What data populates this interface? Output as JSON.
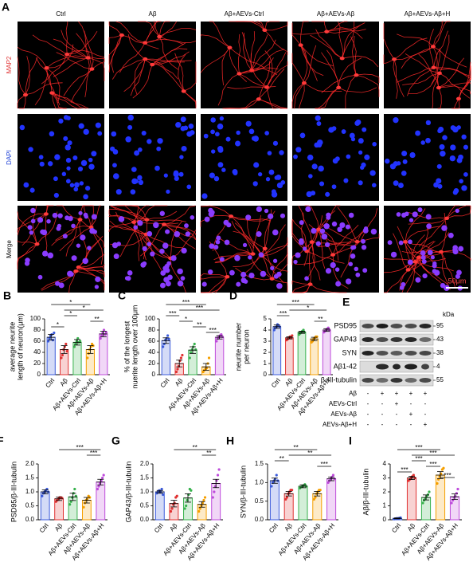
{
  "figure": {
    "panel_a": {
      "label": "A",
      "columns": [
        "Ctrl",
        "Aβ",
        "Aβ+AEVs-Ctrl",
        "Aβ+AEVs-Aβ",
        "Aβ+AEVs-Aβ+H"
      ],
      "rows": [
        "MAP2",
        "DAPI",
        "Merge"
      ],
      "scale_bar": "50μm"
    },
    "panel_e": {
      "label": "E",
      "unit": "kDa",
      "proteins": [
        "PSD95",
        "GAP43",
        "SYN",
        "Aβ1-42",
        "β-III-tubulin"
      ],
      "sizes": [
        95,
        43,
        38,
        4,
        55
      ],
      "treatments": [
        {
          "name": "Aβ",
          "signs": [
            "-",
            "+",
            "+",
            "+",
            "+"
          ]
        },
        {
          "name": "AEVs-Ctrl",
          "signs": [
            "-",
            "-",
            "+",
            "-",
            "-"
          ]
        },
        {
          "name": "AEVs-Aβ",
          "signs": [
            "-",
            "-",
            "-",
            "+",
            "-"
          ]
        },
        {
          "name": "AEVs-Aβ+H",
          "signs": [
            "-",
            "-",
            "-",
            "-",
            "+"
          ]
        }
      ]
    }
  },
  "chart_data": [
    {
      "label": "B",
      "type": "bar",
      "ylabel": [
        "average neurite",
        "length of neuron(μm)"
      ],
      "categories": [
        "Ctrl",
        "Aβ",
        "Aβ+AEVs-Ctrl",
        "Aβ+AEVs-Aβ",
        "Aβ+AEVs-Aβ+H"
      ],
      "colors": [
        "#3b5bdb",
        "#e03131",
        "#37b24d",
        "#f59f00",
        "#be4bdb"
      ],
      "values": [
        67,
        45,
        58,
        45,
        73
      ],
      "errors": [
        5,
        7,
        5,
        7,
        5
      ],
      "points": [
        [
          60,
          65,
          70,
          72,
          62,
          75
        ],
        [
          30,
          35,
          45,
          50,
          55,
          42
        ],
        [
          50,
          55,
          60,
          65,
          58,
          60
        ],
        [
          30,
          38,
          45,
          50,
          55,
          52
        ],
        [
          65,
          70,
          75,
          80,
          72,
          76
        ]
      ],
      "ylim": [
        0,
        100
      ],
      "yticks": [
        0,
        20,
        40,
        60,
        80,
        100
      ],
      "annotations": [
        {
          "span": [
            0,
            3
          ],
          "label": "*"
        },
        {
          "span": [
            1,
            4
          ],
          "label": "*"
        },
        {
          "span": [
            1,
            2
          ],
          "label": "*"
        },
        {
          "span": [
            3,
            4
          ],
          "label": "**"
        },
        {
          "span": [
            0,
            1
          ],
          "label": "*"
        }
      ]
    },
    {
      "label": "C",
      "type": "bar",
      "ylabel": [
        "% of the longest",
        "nuerite length over 100μm"
      ],
      "categories": [
        "Ctrl",
        "Aβ",
        "Aβ+AEVs-Ctrl",
        "Aβ+AEVs-Aβ",
        "Aβ+AEVs-Aβ+H"
      ],
      "colors": [
        "#3b5bdb",
        "#e03131",
        "#37b24d",
        "#f59f00",
        "#be4bdb"
      ],
      "values": [
        61,
        20,
        44,
        14,
        67
      ],
      "errors": [
        5,
        6,
        6,
        6,
        3
      ],
      "points": [
        [
          50,
          55,
          62,
          65,
          70,
          64
        ],
        [
          5,
          10,
          15,
          25,
          30,
          35
        ],
        [
          30,
          40,
          45,
          50,
          55,
          45
        ],
        [
          5,
          8,
          10,
          12,
          20,
          30
        ],
        [
          60,
          65,
          68,
          70,
          72,
          68
        ]
      ],
      "ylim": [
        0,
        100
      ],
      "yticks": [
        0,
        20,
        40,
        60,
        80,
        100
      ],
      "annotations": [
        {
          "span": [
            0,
            3
          ],
          "label": "***"
        },
        {
          "span": [
            1,
            4
          ],
          "label": "***"
        },
        {
          "span": [
            0,
            1
          ],
          "label": "***"
        },
        {
          "span": [
            1,
            2
          ],
          "label": "*"
        },
        {
          "span": [
            2,
            3
          ],
          "label": "**"
        },
        {
          "span": [
            3,
            4
          ],
          "label": "***"
        }
      ]
    },
    {
      "label": "D",
      "type": "bar",
      "ylabel": [
        "neurite number",
        "per neuron"
      ],
      "categories": [
        "Ctrl",
        "Aβ",
        "Aβ+AEVs-Ctrl",
        "Aβ+AEVs-Aβ",
        "Aβ+AEVs-Aβ+H"
      ],
      "colors": [
        "#3b5bdb",
        "#e03131",
        "#37b24d",
        "#f59f00",
        "#be4bdb"
      ],
      "values": [
        4.3,
        3.3,
        3.8,
        3.2,
        4.0
      ],
      "errors": [
        0.15,
        0.1,
        0.1,
        0.15,
        0.12
      ],
      "points": [
        [
          4.0,
          4.2,
          4.3,
          4.5,
          4.4,
          4.3
        ],
        [
          3.1,
          3.2,
          3.3,
          3.4,
          3.3,
          3.5
        ],
        [
          3.6,
          3.7,
          3.8,
          3.9,
          4.0,
          3.8
        ],
        [
          2.9,
          3.0,
          3.2,
          3.3,
          3.4,
          3.4
        ],
        [
          3.8,
          3.9,
          4.0,
          4.1,
          4.2,
          4.0
        ]
      ],
      "ylim": [
        0,
        5
      ],
      "yticks": [
        0,
        1,
        2,
        3,
        4,
        5
      ],
      "annotations": [
        {
          "span": [
            0,
            3
          ],
          "label": "***"
        },
        {
          "span": [
            1,
            4
          ],
          "label": "*"
        },
        {
          "span": [
            0,
            1
          ],
          "label": "***"
        },
        {
          "span": [
            3,
            4
          ],
          "label": "**"
        }
      ]
    },
    {
      "label": "F",
      "type": "bar",
      "ylabel": [
        "PSD95/β-III-tubulin"
      ],
      "categories": [
        "Ctrl",
        "Aβ",
        "Aβ+AEVs-Ctrl",
        "Aβ+AEVs-Aβ",
        "Aβ+AEVs-Aβ+H"
      ],
      "colors": [
        "#3b5bdb",
        "#e03131",
        "#37b24d",
        "#f59f00",
        "#be4bdb"
      ],
      "values": [
        1.0,
        0.75,
        0.82,
        0.7,
        1.35
      ],
      "errors": [
        0.07,
        0.06,
        0.13,
        0.1,
        0.1
      ],
      "points": [
        [
          0.85,
          0.95,
          1.0,
          1.05,
          1.1,
          1.0
        ],
        [
          0.65,
          0.7,
          0.75,
          0.8,
          0.8,
          0.78
        ],
        [
          0.55,
          0.65,
          0.8,
          0.95,
          1.1,
          0.85
        ],
        [
          0.45,
          0.6,
          0.7,
          0.75,
          0.85,
          0.8
        ],
        [
          1.1,
          1.2,
          1.3,
          1.4,
          1.5,
          1.6
        ]
      ],
      "ylim": [
        0,
        2
      ],
      "yticks": [
        {
          "value": 0,
          "label": "0.0"
        },
        0.5,
        {
          "value": 1,
          "label": "1.0"
        },
        1.5,
        {
          "value": 2,
          "label": "2.0"
        }
      ],
      "annotations": [
        {
          "span": [
            1,
            4
          ],
          "label": "***"
        },
        {
          "span": [
            3,
            4
          ],
          "label": "***"
        }
      ]
    },
    {
      "label": "G",
      "type": "bar",
      "ylabel": [
        "GAP43/β-III-tubulin"
      ],
      "categories": [
        "Ctrl",
        "Aβ",
        "Aβ+AEVs-Ctrl",
        "Aβ+AEVs-Aβ",
        "Aβ+AEVs-Aβ+H"
      ],
      "colors": [
        "#3b5bdb",
        "#e03131",
        "#37b24d",
        "#f59f00",
        "#be4bdb"
      ],
      "values": [
        1.0,
        0.58,
        0.78,
        0.55,
        1.3
      ],
      "errors": [
        0.05,
        0.12,
        0.15,
        0.1,
        0.15
      ],
      "points": [
        [
          0.95,
          1.0,
          1.05,
          1.0,
          1.1,
          0.9
        ],
        [
          0.3,
          0.4,
          0.55,
          0.6,
          0.8,
          0.85
        ],
        [
          0.4,
          0.5,
          0.7,
          0.9,
          1.1,
          1.05
        ],
        [
          0.3,
          0.4,
          0.5,
          0.6,
          0.7,
          0.8
        ],
        [
          0.8,
          1.0,
          1.2,
          1.4,
          1.6,
          1.8
        ]
      ],
      "ylim": [
        0,
        2
      ],
      "yticks": [
        {
          "value": 0,
          "label": "0.0"
        },
        0.5,
        {
          "value": 1,
          "label": "1.0"
        },
        1.5,
        {
          "value": 2,
          "label": "2.0"
        }
      ],
      "annotations": [
        {
          "span": [
            1,
            4
          ],
          "label": "**"
        },
        {
          "span": [
            3,
            4
          ],
          "label": "**"
        }
      ]
    },
    {
      "label": "H",
      "type": "bar",
      "ylabel": [
        "SYN/β-III-tubulin"
      ],
      "categories": [
        "Ctrl",
        "Aβ",
        "Aβ+AEVs-Ctrl",
        "Aβ+AEVs-Aβ",
        "Aβ+AEVs-Aβ+H"
      ],
      "colors": [
        "#3b5bdb",
        "#e03131",
        "#37b24d",
        "#f59f00",
        "#be4bdb"
      ],
      "values": [
        1.05,
        0.7,
        0.9,
        0.7,
        1.1
      ],
      "errors": [
        0.07,
        0.06,
        0.04,
        0.06,
        0.05
      ],
      "points": [
        [
          0.9,
          1.0,
          1.05,
          1.1,
          1.2,
          1.05
        ],
        [
          0.55,
          0.6,
          0.7,
          0.75,
          0.8,
          0.8
        ],
        [
          0.85,
          0.88,
          0.9,
          0.92,
          0.95,
          0.9
        ],
        [
          0.55,
          0.6,
          0.7,
          0.75,
          0.8,
          0.8
        ],
        [
          1.0,
          1.05,
          1.1,
          1.15,
          1.2,
          1.1
        ]
      ],
      "ylim": [
        0,
        1.5
      ],
      "yticks": [
        {
          "value": 0,
          "label": "0.0"
        },
        0.5,
        {
          "value": 1,
          "label": "1.0"
        },
        1.5
      ],
      "annotations": [
        {
          "span": [
            0,
            3
          ],
          "label": "**"
        },
        {
          "span": [
            1,
            4
          ],
          "label": "**"
        },
        {
          "span": [
            0,
            1
          ],
          "label": "**"
        },
        {
          "span": [
            3,
            4
          ],
          "label": "***"
        }
      ]
    },
    {
      "label": "I",
      "type": "bar",
      "ylabel": [
        "Aβ/β-III-tubulin"
      ],
      "categories": [
        "Ctrl",
        "Aβ",
        "Aβ+AEVs-Ctrl",
        "Aβ+AEVs-Aβ",
        "Aβ+AEVs-Aβ+H"
      ],
      "colors": [
        "#3b5bdb",
        "#e03131",
        "#37b24d",
        "#f59f00",
        "#be4bdb"
      ],
      "values": [
        0.1,
        3.0,
        1.6,
        3.2,
        1.65
      ],
      "errors": [
        0.03,
        0.12,
        0.18,
        0.25,
        0.2
      ],
      "points": [
        [
          0.05,
          0.08,
          0.1,
          0.1,
          0.12,
          0.15
        ],
        [
          2.8,
          2.9,
          3.0,
          3.1,
          3.2,
          3.0
        ],
        [
          1.2,
          1.4,
          1.5,
          1.7,
          1.8,
          2.0
        ],
        [
          2.6,
          2.9,
          3.1,
          3.3,
          3.6,
          3.7
        ],
        [
          1.2,
          1.4,
          1.6,
          1.7,
          1.9,
          2.2
        ]
      ],
      "ylim": [
        0,
        4
      ],
      "yticks": [
        0,
        1,
        2,
        3,
        4
      ],
      "annotations": [
        {
          "span": [
            0,
            3
          ],
          "label": "***"
        },
        {
          "span": [
            1,
            4
          ],
          "label": "***"
        },
        {
          "span": [
            1,
            2
          ],
          "label": "***"
        },
        {
          "span": [
            2,
            3
          ],
          "label": "***"
        },
        {
          "span": [
            0,
            1
          ],
          "label": "***"
        },
        {
          "span": [
            3,
            4
          ],
          "label": "***"
        }
      ]
    }
  ]
}
